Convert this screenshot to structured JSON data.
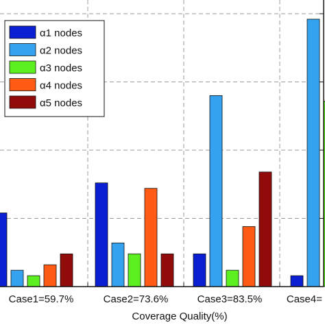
{
  "chart_data": {
    "type": "bar",
    "xlabel": "Coverage Quality(%)",
    "categories": [
      "Case1=59.7%",
      "Case2=73.6%",
      "Case3=83.5%",
      "Case4="
    ],
    "series": [
      {
        "name": "α1 nodes",
        "color": "#0a1ed2",
        "values": [
          0.27,
          0.38,
          0.12,
          0.04
        ]
      },
      {
        "name": "α2 nodes",
        "color": "#35a2ef",
        "values": [
          0.06,
          0.16,
          0.7,
          0.98
        ]
      },
      {
        "name": "α3 nodes",
        "color": "#5cf021",
        "values": [
          0.04,
          0.12,
          0.06,
          0.68
        ]
      },
      {
        "name": "α4 nodes",
        "color": "#ff5b14",
        "values": [
          0.08,
          0.36,
          0.22,
          0.0
        ]
      },
      {
        "name": "α5 nodes",
        "color": "#920b0b",
        "values": [
          0.12,
          0.12,
          0.42,
          0.0
        ]
      }
    ],
    "ylim": [
      0,
      1
    ],
    "grid": true,
    "legend_position": "top-left"
  }
}
